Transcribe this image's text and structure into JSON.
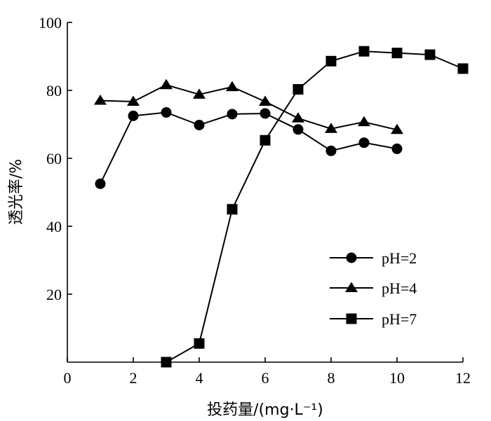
{
  "chart_data": {
    "type": "line",
    "title": "",
    "xlabel": "投药量/(mg·L⁻¹)",
    "ylabel": "透光率/%",
    "xlim": [
      0,
      12
    ],
    "ylim": [
      0,
      100
    ],
    "x_ticks": [
      "0",
      "2",
      "4",
      "6",
      "8",
      "10",
      "12"
    ],
    "y_ticks": [
      "20",
      "40",
      "60",
      "80",
      "100"
    ],
    "grid": false,
    "legend_position": "bottom-right",
    "series": [
      {
        "name": "pH=2",
        "marker": "circle",
        "x": [
          1,
          2,
          3,
          4,
          5,
          6,
          7,
          8,
          9,
          10
        ],
        "y": [
          52.5,
          72.5,
          73.5,
          69.8,
          73,
          73.2,
          68.5,
          62.2,
          64.6,
          62.8
        ]
      },
      {
        "name": "pH=4",
        "marker": "triangle",
        "x": [
          1,
          2,
          3,
          4,
          5,
          6,
          7,
          8,
          9,
          10
        ],
        "y": [
          77,
          76.7,
          81.6,
          78.8,
          81,
          76.7,
          71.8,
          68.7,
          70.7,
          68.4
        ]
      },
      {
        "name": "pH=7",
        "marker": "square",
        "x": [
          3,
          4,
          5,
          6,
          7,
          8,
          9,
          10,
          11,
          12
        ],
        "y": [
          0,
          5.5,
          45,
          65.3,
          80.3,
          88.6,
          91.5,
          91,
          90.5,
          86.4
        ]
      }
    ]
  }
}
